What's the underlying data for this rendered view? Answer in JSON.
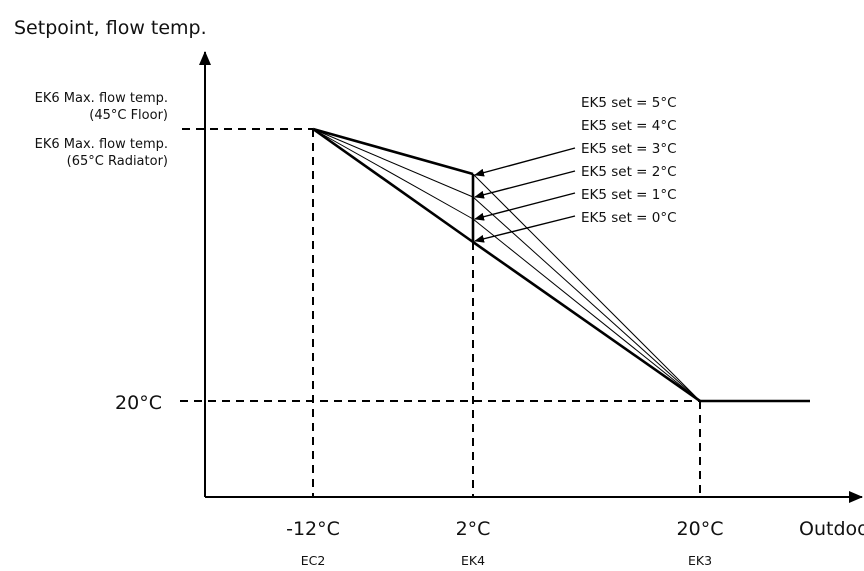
{
  "title": "Setpoint, flow temp.",
  "y_labels": {
    "max_floor_line1": "EK6 Max. flow temp.",
    "max_floor_line2": "(45°C Floor)",
    "max_radiator_line1": "EK6 Max. flow temp.",
    "max_radiator_line2": "(65°C Radiator)",
    "min_temp": "20°C"
  },
  "x_labels": {
    "p1_value": "-12°C",
    "p1_code": "EC2",
    "p2_value": "2°C",
    "p2_code": "EK4",
    "p3_value": "20°C",
    "p3_code": "EK3",
    "axis_title": "Outdoor temp."
  },
  "ek5_settings": [
    "EK5 set = 5°C",
    "EK5 set = 4°C",
    "EK5 set = 3°C",
    "EK5 set = 2°C",
    "EK5 set = 1°C",
    "EK5 set = 0°C"
  ]
}
